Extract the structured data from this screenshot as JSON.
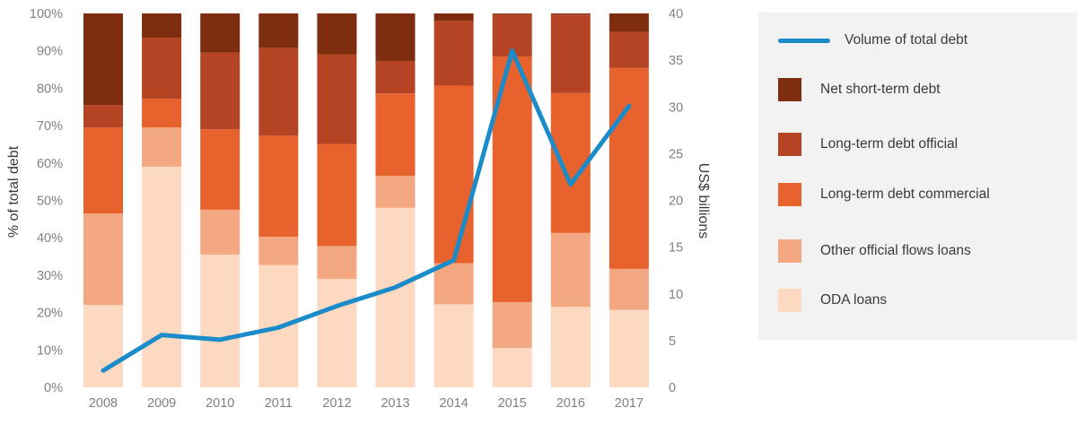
{
  "chart_data": {
    "type": "bar",
    "stacked": true,
    "categories": [
      "2008",
      "2009",
      "2010",
      "2011",
      "2012",
      "2013",
      "2014",
      "2015",
      "2016",
      "2017"
    ],
    "series": [
      {
        "name": "ODA loans",
        "color": "#fcd9c0",
        "values": [
          22,
          59,
          35.5,
          32.7,
          29,
          48,
          22.2,
          10.5,
          21.5,
          20.7
        ]
      },
      {
        "name": "Other official flows loans",
        "color": "#f4a882",
        "values": [
          24.5,
          10.5,
          12,
          7.6,
          8.8,
          8.6,
          11,
          12.3,
          19.8,
          11
        ]
      },
      {
        "name": "Long-term debt commercial",
        "color": "#e8622e",
        "values": [
          23,
          7.7,
          21.5,
          27,
          27.3,
          22,
          47.5,
          65.7,
          37.4,
          53.7
        ]
      },
      {
        "name": "Long-term debt official",
        "color": "#b44424",
        "values": [
          6,
          16.3,
          20.5,
          23.5,
          24,
          8.7,
          17.3,
          11.3,
          21,
          9.7
        ]
      },
      {
        "name": "Net short-term debt",
        "color": "#7e2d0e",
        "values": [
          24.5,
          6.5,
          10.5,
          9.2,
          10.9,
          12.7,
          2,
          0.2,
          0.3,
          4.9
        ]
      }
    ],
    "line_series": {
      "name": "Volume of total debt",
      "color": "#1b8cc9",
      "axis": "right",
      "values": [
        1.8,
        5.6,
        5.1,
        6.4,
        8.7,
        10.7,
        13.6,
        36,
        21.7,
        30.1
      ]
    },
    "left_axis": {
      "label": "% of total debt",
      "min": 0,
      "max": 100,
      "ticks": [
        "0%",
        "10%",
        "20%",
        "30%",
        "40%",
        "50%",
        "60%",
        "70%",
        "80%",
        "90%",
        "100%"
      ]
    },
    "right_axis": {
      "label": "US$ billions",
      "min": 0,
      "max": 40,
      "ticks": [
        "0",
        "5",
        "10",
        "15",
        "20",
        "25",
        "30",
        "35",
        "40"
      ]
    },
    "legend_placement": "right",
    "grid": false
  },
  "legend": [
    {
      "label": "Volume of total debt",
      "kind": "line",
      "color": "#1b8cc9"
    },
    {
      "label": "Net short-term debt",
      "kind": "box",
      "color": "#7e2d0e"
    },
    {
      "label": "Long-term debt official",
      "kind": "box",
      "color": "#b44424"
    },
    {
      "label": "Long-term debt commercial",
      "kind": "box",
      "color": "#e8622e"
    },
    {
      "label": "Other official flows loans",
      "kind": "box",
      "color": "#f4a882"
    },
    {
      "label": "ODA loans",
      "kind": "box",
      "color": "#fcd9c0"
    }
  ]
}
